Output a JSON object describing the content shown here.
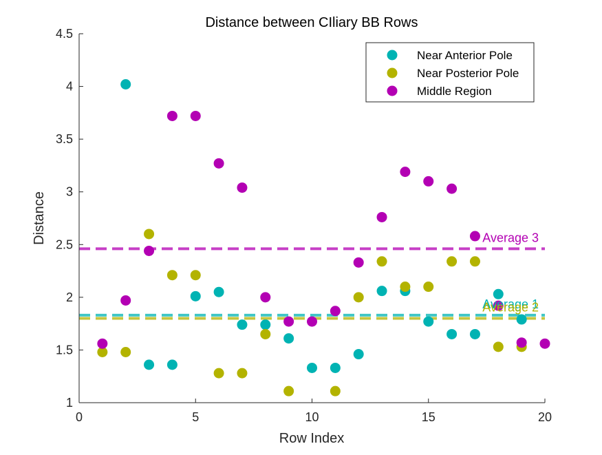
{
  "chart_data": {
    "type": "scatter",
    "title": "Distance between CIliary BB Rows",
    "xlabel": "Row Index",
    "ylabel": "Distance",
    "xlim": [
      0,
      20
    ],
    "ylim": [
      1,
      4.5
    ],
    "xticks": [
      0,
      5,
      10,
      15,
      20
    ],
    "yticks": [
      1,
      1.5,
      2,
      2.5,
      3,
      3.5,
      4,
      4.5
    ],
    "grid": false,
    "legend_position": "top-right",
    "series": [
      {
        "name": "Near Anterior Pole",
        "color": "#00b3b3",
        "x": [
          2,
          3,
          4,
          5,
          6,
          7,
          8,
          9,
          10,
          11,
          12,
          13,
          14,
          15,
          16,
          17,
          18,
          19
        ],
        "y": [
          4.02,
          1.36,
          1.36,
          2.01,
          2.05,
          1.74,
          1.74,
          1.61,
          1.33,
          1.33,
          1.46,
          2.06,
          2.06,
          1.77,
          1.65,
          1.65,
          2.03,
          1.79
        ]
      },
      {
        "name": "Near Posterior Pole",
        "color": "#b3b300",
        "x": [
          1,
          2,
          3,
          4,
          5,
          6,
          7,
          8,
          9,
          11,
          12,
          13,
          14,
          15,
          16,
          17,
          18,
          19
        ],
        "y": [
          1.48,
          1.48,
          2.6,
          2.21,
          2.21,
          1.28,
          1.28,
          1.65,
          1.11,
          1.11,
          2.0,
          2.34,
          2.1,
          2.1,
          2.34,
          2.34,
          1.53,
          1.53
        ]
      },
      {
        "name": "Middle Region",
        "color": "#b300b3",
        "x": [
          1,
          2,
          3,
          4,
          5,
          6,
          7,
          8,
          9,
          10,
          11,
          12,
          13,
          14,
          15,
          16,
          17,
          18,
          19,
          20
        ],
        "y": [
          1.56,
          1.97,
          2.44,
          3.72,
          3.72,
          3.27,
          3.04,
          2.0,
          1.77,
          1.77,
          1.87,
          2.33,
          2.76,
          3.19,
          3.1,
          3.03,
          2.58,
          1.92,
          1.57,
          1.56
        ]
      }
    ],
    "reference_lines": [
      {
        "label": "Average 1",
        "y": 1.83,
        "color": "#00b3b3"
      },
      {
        "label": "Average 2",
        "y": 1.8,
        "color": "#b3b300"
      },
      {
        "label": "Average 3",
        "y": 2.46,
        "color": "#b300b3"
      }
    ]
  }
}
